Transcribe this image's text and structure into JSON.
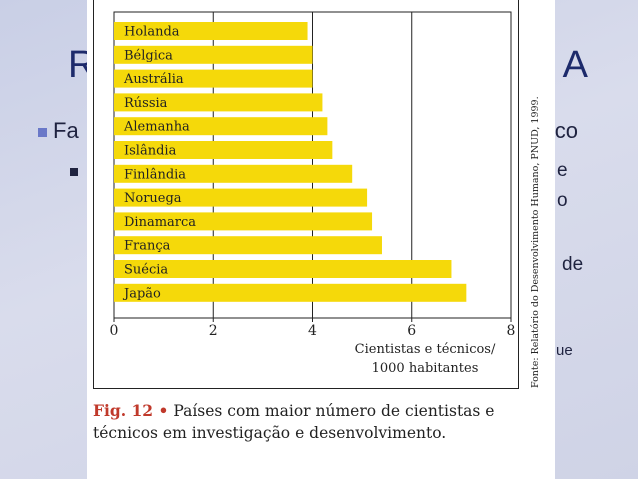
{
  "slide": {
    "title_left": "R",
    "title_right": "A",
    "bullet1_left": "Fa",
    "bullet1_right": "co",
    "fragments": [
      "e",
      "o",
      "de",
      "ue"
    ]
  },
  "chart_data": {
    "type": "bar",
    "orientation": "horizontal",
    "categories": [
      "Holanda",
      "Bélgica",
      "Austrália",
      "Rússia",
      "Alemanha",
      "Islândia",
      "Finlândia",
      "Noruega",
      "Dinamarca",
      "França",
      "Suécia",
      "Japão"
    ],
    "values": [
      3.9,
      4.0,
      4.0,
      4.2,
      4.3,
      4.4,
      4.8,
      5.1,
      5.2,
      5.4,
      6.8,
      7.1
    ],
    "xlim": [
      0,
      8
    ],
    "xticks": [
      "0",
      "2",
      "4",
      "6",
      "8"
    ],
    "xlabel_line1": "Cientistas e técnicos/",
    "xlabel_line2": "1000 habitantes",
    "bar_color": "#f5d90a",
    "grid": true
  },
  "caption": {
    "fig_label": "Fig. 12 •",
    "text": "Países com maior número de cientistas e técnicos em investigação e desenvolvimento."
  },
  "source": "Fonte: Relatório do Desenvolvimento Humano, PNUD, 1999."
}
